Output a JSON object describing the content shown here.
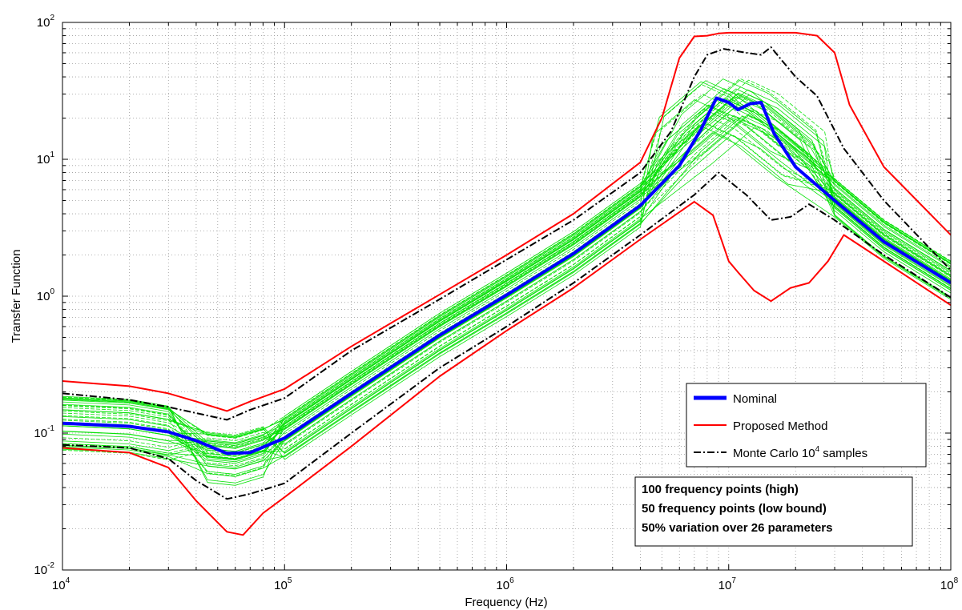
{
  "chart_data": {
    "type": "line",
    "title": "",
    "xlabel": "Frequency (Hz)",
    "ylabel": "Transfer Function",
    "xscale": "log",
    "yscale": "log",
    "xlim": [
      10000,
      100000000
    ],
    "ylim": [
      0.01,
      100
    ],
    "grid": true,
    "legend_position": "lower-right",
    "x_ticks": [
      {
        "base": "10",
        "exp": "4"
      },
      {
        "base": "10",
        "exp": "5"
      },
      {
        "base": "10",
        "exp": "6"
      },
      {
        "base": "10",
        "exp": "7"
      },
      {
        "base": "10",
        "exp": "8"
      }
    ],
    "y_ticks": [
      {
        "base": "10",
        "exp": "-2"
      },
      {
        "base": "10",
        "exp": "-1"
      },
      {
        "base": "10",
        "exp": "0"
      },
      {
        "base": "10",
        "exp": "1"
      },
      {
        "base": "10",
        "exp": "2"
      }
    ],
    "legend": [
      {
        "label": "Nominal",
        "color": "#0000ff",
        "style": "solid"
      },
      {
        "label": "Proposed Method",
        "color": "#ff0000",
        "style": "solid"
      },
      {
        "label": "Monte Carlo 10",
        "sup": "4",
        "suffix": " samples",
        "color": "#000000",
        "style": "dashdot"
      }
    ],
    "annotation": [
      "100 frequency points (high)",
      "50 frequency points (low bound)",
      "50% variation over 26 parameters"
    ],
    "series": [
      {
        "name": "Nominal",
        "color": "#0000ff",
        "x": [
          10000,
          20000,
          30000,
          40000,
          55000,
          70000,
          100000,
          200000,
          500000,
          1000000,
          2000000,
          4000000,
          6000000,
          7500000,
          8800000,
          10000000,
          11000000,
          12500000,
          14000000,
          16000000,
          20000000,
          30000000,
          50000000,
          100000000
        ],
        "y": [
          0.118,
          0.112,
          0.102,
          0.088,
          0.071,
          0.072,
          0.092,
          0.195,
          0.52,
          1.02,
          2.05,
          4.6,
          9.0,
          16.5,
          28.0,
          26.0,
          23.0,
          25.5,
          26.0,
          15.5,
          8.8,
          5.0,
          2.5,
          1.25
        ]
      },
      {
        "name": "Proposed Method",
        "color": "#ff0000",
        "x": [
          10000,
          20000,
          30000,
          40000,
          55000,
          70000,
          100000,
          200000,
          500000,
          1000000,
          2000000,
          4000000,
          5000000,
          6000000,
          7000000,
          8000000,
          9000000,
          10000000,
          15000000,
          20000000,
          25000000,
          30000000,
          35000000,
          50000000,
          100000000
        ],
        "y": [
          0.24,
          0.22,
          0.195,
          0.17,
          0.145,
          0.17,
          0.21,
          0.43,
          1.03,
          2.0,
          4.0,
          9.5,
          20.0,
          55.0,
          79.0,
          80.0,
          83.0,
          84.0,
          84.0,
          84.0,
          80.0,
          60.0,
          25.0,
          8.8,
          2.8
        ]
      },
      {
        "name": "Proposed Method lower",
        "color": "#ff0000",
        "x": [
          10000,
          20000,
          30000,
          40000,
          55000,
          65000,
          80000,
          100000,
          200000,
          500000,
          1000000,
          2000000,
          4000000,
          7000000,
          8500000,
          10000000,
          11000000,
          13000000,
          15500000,
          19000000,
          23000000,
          28000000,
          33000000,
          100000000
        ],
        "y": [
          0.078,
          0.072,
          0.056,
          0.032,
          0.019,
          0.018,
          0.026,
          0.034,
          0.08,
          0.26,
          0.56,
          1.15,
          2.6,
          4.9,
          3.9,
          1.8,
          1.5,
          1.1,
          0.92,
          1.15,
          1.25,
          1.8,
          2.8,
          0.86
        ]
      },
      {
        "name": "Monte Carlo upper",
        "color": "#000000",
        "x": [
          10000,
          20000,
          30000,
          40000,
          55000,
          70000,
          100000,
          200000,
          500000,
          1000000,
          2000000,
          4000000,
          5500000,
          7000000,
          8000000,
          9500000,
          12000000,
          14000000,
          15500000,
          17000000,
          20000000,
          25000000,
          33000000,
          50000000,
          100000000
        ],
        "y": [
          0.195,
          0.175,
          0.155,
          0.14,
          0.125,
          0.148,
          0.18,
          0.4,
          0.95,
          1.85,
          3.6,
          8.0,
          16.0,
          40.0,
          58.0,
          64.0,
          60.0,
          58.0,
          66.0,
          55.0,
          40.0,
          29.0,
          12.0,
          5.0,
          1.55
        ]
      },
      {
        "name": "Monte Carlo lower",
        "color": "#000000",
        "x": [
          10000,
          20000,
          30000,
          40000,
          55000,
          70000,
          100000,
          200000,
          500000,
          1000000,
          2000000,
          4000000,
          7000000,
          9000000,
          12000000,
          15500000,
          19000000,
          23000000,
          30000000,
          50000000,
          100000000
        ],
        "y": [
          0.082,
          0.078,
          0.065,
          0.045,
          0.033,
          0.036,
          0.043,
          0.1,
          0.3,
          0.6,
          1.25,
          2.8,
          5.5,
          8.0,
          5.5,
          3.6,
          3.8,
          4.7,
          3.6,
          2.0,
          0.98
        ]
      }
    ],
    "mc_samples": {
      "color": "#00e000",
      "count": 40,
      "lowf_range": [
        0.075,
        0.19
      ],
      "dip_range": [
        0.04,
        0.1
      ],
      "mid_factor_range": [
        0.68,
        1.45
      ],
      "peak_range": [
        15.0,
        40.0
      ],
      "peak_freq_range": [
        7000000,
        13000000
      ]
    }
  }
}
